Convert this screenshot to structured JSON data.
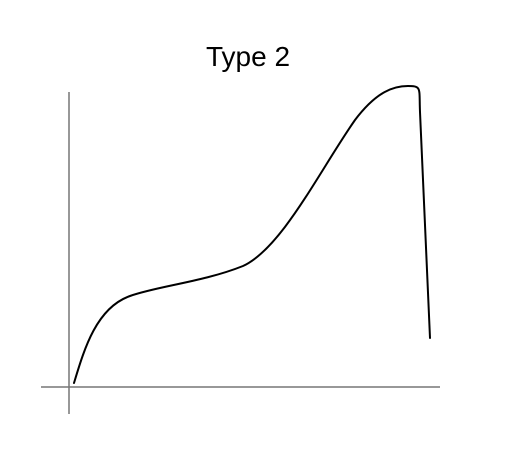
{
  "diagram": {
    "title": "Type 2",
    "colors": {
      "axis": "#777777",
      "curve": "#000000",
      "background": "#ffffff"
    }
  }
}
